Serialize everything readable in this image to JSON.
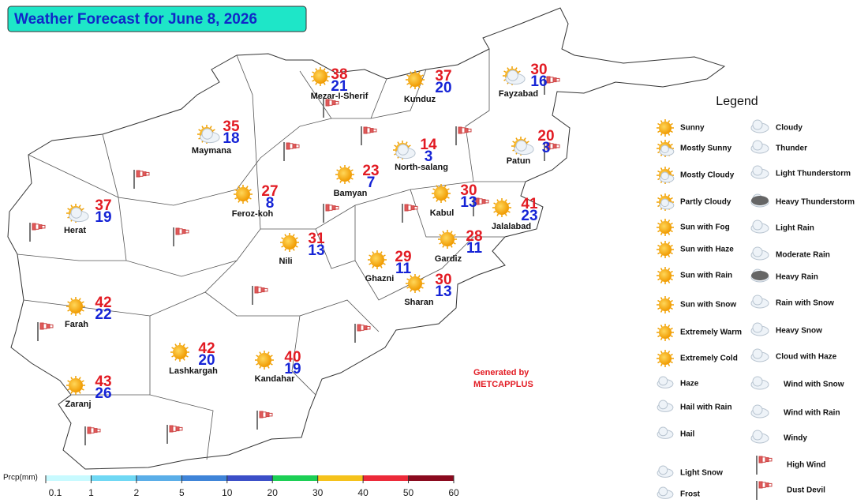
{
  "title": "Weather Forecast for June 8, 2026",
  "cities": [
    {
      "name": "Mezar-I-Sherif",
      "max": 38,
      "min": 21
    },
    {
      "name": "Kunduz",
      "max": 37,
      "min": 20
    },
    {
      "name": "Fayzabad",
      "max": 30,
      "min": 16
    },
    {
      "name": "Maymana",
      "max": 35,
      "min": 18
    },
    {
      "name": "North-salang",
      "max": 14,
      "min": 3
    },
    {
      "name": "Patun",
      "max": 20,
      "min": 3
    },
    {
      "name": "Bamyan",
      "max": 23,
      "min": 7
    },
    {
      "name": "Feroz-koh",
      "max": 27,
      "min": 8
    },
    {
      "name": "Kabul",
      "max": 30,
      "min": 13
    },
    {
      "name": "Jalalabad",
      "max": 41,
      "min": 23
    },
    {
      "name": "Herat",
      "max": 37,
      "min": 19
    },
    {
      "name": "Nili",
      "max": 31,
      "min": 13
    },
    {
      "name": "Gardiz",
      "max": 28,
      "min": 11
    },
    {
      "name": "Ghazni",
      "max": 29,
      "min": 11
    },
    {
      "name": "Sharan",
      "max": 30,
      "min": 13
    },
    {
      "name": "Farah",
      "max": 42,
      "min": 22
    },
    {
      "name": "Lashkargah",
      "max": 42,
      "min": 20
    },
    {
      "name": "Kandahar",
      "max": 40,
      "min": 19
    },
    {
      "name": "Zaranj",
      "max": 43,
      "min": 26
    }
  ],
  "credit": {
    "line1": "Generated by",
    "line2": "METCAPPLUS"
  },
  "legend": {
    "title": "Legend",
    "items": [
      "Sunny",
      "Mostly Sunny",
      "Mostly Cloudy",
      "Partly Cloudy",
      "Sun with Fog",
      "Sun with Haze",
      "Sun with Rain",
      "Sun with Snow",
      "Extremely Warm",
      "Extremely Cold",
      "Haze",
      "Hail with Rain",
      "Hail",
      "Light Snow",
      "Frost",
      "Cloudy",
      "Thunder",
      "Light Thunderstorm",
      "Heavy Thunderstorm",
      "Light Rain",
      "Moderate Rain",
      "Heavy Rain",
      "Rain with Snow",
      "Heavy Snow",
      "Cloud with Haze",
      "Wind with Snow",
      "Wind with Rain",
      "Windy",
      "High Wind",
      "Dust Devil"
    ]
  },
  "precipitation_scale": {
    "label": "Prcp(mm)",
    "ticks": [
      0.1,
      1,
      2,
      5,
      10,
      20,
      30,
      40,
      50,
      60
    ],
    "colors": [
      "#c8faff",
      "#6fd8f4",
      "#5aaee8",
      "#3f84d8",
      "#3b4fc8",
      "#1ccf55",
      "#f5c21b",
      "#ec2a39",
      "#8a0a1e"
    ]
  }
}
